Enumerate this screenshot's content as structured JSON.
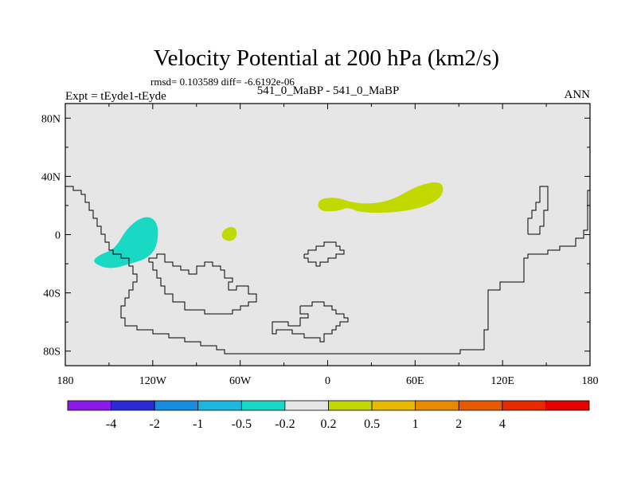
{
  "chart_data": {
    "type": "contour-map",
    "title": "Velocity Potential at 200 hPa (km2/s)",
    "stats": "rmsd= 0.103589 diff= -6.6192e-06",
    "left_label": "Expt = tEyde1-tEyde",
    "center_label": "541_0_MaBP - 541_0_MaBP",
    "right_label": "ANN",
    "x_axis": {
      "range": [
        -180,
        180
      ],
      "ticks": [
        -180,
        -120,
        -60,
        0,
        60,
        120,
        180
      ],
      "tick_labels": [
        "180",
        "120W",
        "60W",
        "0",
        "60E",
        "120E",
        "180"
      ]
    },
    "y_axis": {
      "range": [
        -90,
        90
      ],
      "ticks": [
        80,
        40,
        0,
        -40,
        -80
      ],
      "tick_labels": [
        "80N",
        "40N",
        "0",
        "40S",
        "80S"
      ]
    },
    "colorbar": {
      "colors": [
        "#8b1ae6",
        "#2a2ad6",
        "#1a8ce0",
        "#1ab8e0",
        "#1ad9c4",
        "#e6e6e6",
        "#c2d900",
        "#e6b800",
        "#e68a00",
        "#e65a00",
        "#e62a00",
        "#e60000"
      ],
      "labels": [
        "-4",
        "-2",
        "-1",
        "-0.5",
        "-0.2",
        "0.2",
        "0.5",
        "1",
        "2",
        "4"
      ]
    },
    "regions": [
      {
        "name": "negative-anomaly-east-pacific",
        "level": "-0.5 to -0.2",
        "color": "#1ad9c4",
        "points": [
          [
            -162,
            -19
          ],
          [
            -150,
            -24
          ],
          [
            -135,
            -20
          ],
          [
            -123,
            -16
          ],
          [
            -117,
            -8
          ],
          [
            -116,
            5
          ],
          [
            -120,
            12
          ],
          [
            -128,
            12
          ],
          [
            -138,
            4
          ],
          [
            -146,
            -10
          ],
          [
            -157,
            -14
          ]
        ]
      },
      {
        "name": "positive-anomaly-south-america",
        "level": "0.2 to 0.5",
        "color": "#c2d900",
        "points": [
          [
            -73,
            -2
          ],
          [
            -68,
            -5
          ],
          [
            -63,
            -3
          ],
          [
            -62,
            3
          ],
          [
            -66,
            6
          ],
          [
            -72,
            3
          ]
        ]
      },
      {
        "name": "positive-anomaly-africa-asia",
        "level": "0.2 to 0.5",
        "color": "#c2d900",
        "points": [
          [
            -7,
            24
          ],
          [
            5,
            26
          ],
          [
            17,
            22
          ],
          [
            30,
            21
          ],
          [
            45,
            24
          ],
          [
            62,
            34
          ],
          [
            78,
            37
          ],
          [
            80,
            28
          ],
          [
            70,
            20
          ],
          [
            48,
            15
          ],
          [
            22,
            15
          ],
          [
            14,
            19
          ],
          [
            7,
            16
          ],
          [
            -6,
            16
          ]
        ]
      }
    ],
    "plot_background": "#e6e6e6",
    "coastline_color": "#000000"
  }
}
